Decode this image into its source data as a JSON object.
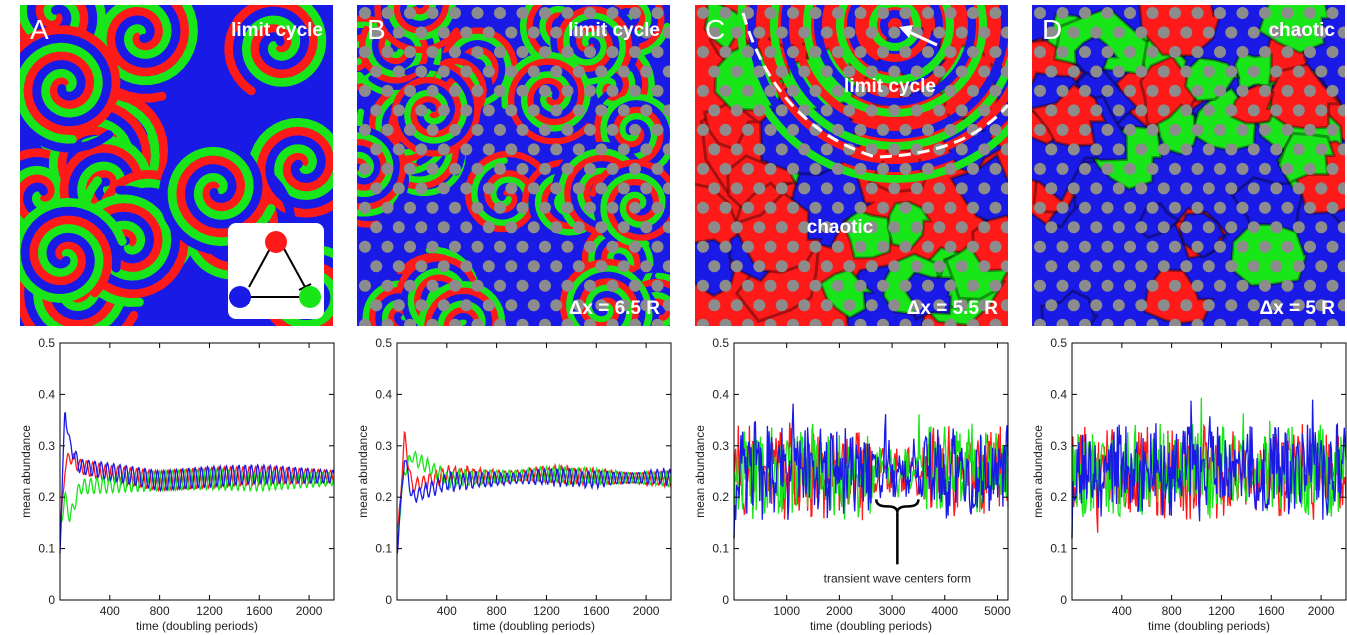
{
  "colors": {
    "red": "#ff1a1a",
    "green": "#19e619",
    "blue": "#1a1ae6",
    "dots": "#8c8c8c",
    "dark": "#111111"
  },
  "panels": [
    {
      "letter": "A",
      "regime_label": "limit cycle",
      "spacing_label": "",
      "show_dots": false,
      "pattern": "spirals",
      "inset": {
        "present": true,
        "nodes": [
          "red",
          "blue",
          "green"
        ]
      },
      "chart_data": {
        "type": "line",
        "xlabel": "time (doubling periods)",
        "ylabel": "mean abundance",
        "xlim": [
          0,
          2200
        ],
        "ylim": [
          0,
          0.5
        ],
        "xticks": [
          400,
          800,
          1200,
          1600,
          2000
        ],
        "yticks": [
          0,
          0.1,
          0.2,
          0.3,
          0.4,
          0.5
        ],
        "ytick_labels": [
          "0",
          "0.1",
          "0.2",
          "0.3",
          "0.4",
          "0.5"
        ],
        "series_style": "damped",
        "series": [
          {
            "color": "red",
            "x": [
              0,
              40,
              80,
              160,
              400,
              800,
              1200,
              1600,
              2200
            ],
            "y": [
              0.12,
              0.26,
              0.28,
              0.26,
              0.245,
              0.232,
              0.238,
              0.242,
              0.24
            ]
          },
          {
            "color": "green",
            "x": [
              0,
              40,
              80,
              160,
              400,
              800,
              1200,
              1600,
              2200
            ],
            "y": [
              0.14,
              0.2,
              0.16,
              0.22,
              0.225,
              0.232,
              0.235,
              0.23,
              0.235
            ]
          },
          {
            "color": "blue",
            "x": [
              0,
              40,
              80,
              160,
              400,
              800,
              1200,
              1600,
              2200
            ],
            "y": [
              0.1,
              0.37,
              0.3,
              0.26,
              0.25,
              0.232,
              0.24,
              0.245,
              0.24
            ]
          }
        ]
      }
    },
    {
      "letter": "B",
      "regime_label": "limit cycle",
      "spacing_label": "Δx = 6.5 R",
      "show_dots": true,
      "pattern": "dense-spirals",
      "inset": {
        "present": false
      },
      "chart_data": {
        "type": "line",
        "xlabel": "time (doubling periods)",
        "ylabel": "mean abundance",
        "xlim": [
          0,
          2200
        ],
        "ylim": [
          0,
          0.5
        ],
        "xticks": [
          400,
          800,
          1200,
          1600,
          2000
        ],
        "yticks": [
          0,
          0.1,
          0.2,
          0.3,
          0.4,
          0.5
        ],
        "ytick_labels": [
          "0",
          "0.1",
          "0.2",
          "0.3",
          "0.4",
          "0.5"
        ],
        "series_style": "damped-wide",
        "series": [
          {
            "color": "red",
            "x": [
              0,
              60,
              120,
              400,
              800,
              1200,
              1600,
              2200
            ],
            "y": [
              0.1,
              0.32,
              0.22,
              0.245,
              0.24,
              0.245,
              0.24,
              0.235
            ]
          },
          {
            "color": "green",
            "x": [
              0,
              60,
              120,
              400,
              800,
              1200,
              1600,
              2200
            ],
            "y": [
              0.12,
              0.25,
              0.28,
              0.235,
              0.24,
              0.245,
              0.24,
              0.235
            ]
          },
          {
            "color": "blue",
            "x": [
              0,
              60,
              120,
              400,
              800,
              1200,
              1600,
              2200
            ],
            "y": [
              0.09,
              0.28,
              0.2,
              0.23,
              0.235,
              0.24,
              0.235,
              0.24
            ]
          }
        ]
      }
    },
    {
      "letter": "C",
      "regime_label": "limit cycle",
      "regime_label_2": "chaotic",
      "spacing_label": "Δx = 5.5 R",
      "show_dots": true,
      "pattern": "mixed",
      "inset": {
        "present": false
      },
      "chart_data": {
        "type": "line",
        "xlabel": "time (doubling periods)",
        "ylabel": "mean abundance",
        "xlim": [
          0,
          5200
        ],
        "ylim": [
          0,
          0.5
        ],
        "xticks": [
          1000,
          2000,
          3000,
          4000,
          5000
        ],
        "yticks": [
          0,
          0.1,
          0.2,
          0.3,
          0.4,
          0.5
        ],
        "ytick_labels": [
          "0",
          "0.1",
          "0.2",
          "0.3",
          "0.4",
          "0.5"
        ],
        "series_style": "noisy-with-calm",
        "calm_range": [
          2600,
          3600
        ],
        "annotation": {
          "text": "transient wave centers form",
          "x": 3100,
          "y": 0.19
        },
        "series": [
          {
            "color": "red",
            "x": [
              0,
              5200
            ],
            "y": [
              0.25,
              0.25
            ]
          },
          {
            "color": "green",
            "x": [
              0,
              5200
            ],
            "y": [
              0.25,
              0.25
            ]
          },
          {
            "color": "blue",
            "x": [
              0,
              5200
            ],
            "y": [
              0.25,
              0.25
            ]
          }
        ]
      }
    },
    {
      "letter": "D",
      "regime_label": "chaotic",
      "spacing_label": "Δx = 5 R",
      "show_dots": true,
      "pattern": "blobs",
      "inset": {
        "present": false
      },
      "chart_data": {
        "type": "line",
        "xlabel": "time (doubling periods)",
        "ylabel": "mean abundance",
        "xlim": [
          0,
          2200
        ],
        "ylim": [
          0,
          0.5
        ],
        "xticks": [
          400,
          800,
          1200,
          1600,
          2000
        ],
        "yticks": [
          0,
          0.1,
          0.2,
          0.3,
          0.4,
          0.5
        ],
        "ytick_labels": [
          "0",
          "0.1",
          "0.2",
          "0.3",
          "0.4",
          "0.5"
        ],
        "series_style": "noisy",
        "series": [
          {
            "color": "red",
            "x": [
              0,
              2200
            ],
            "y": [
              0.25,
              0.25
            ]
          },
          {
            "color": "green",
            "x": [
              0,
              2200
            ],
            "y": [
              0.25,
              0.25
            ]
          },
          {
            "color": "blue",
            "x": [
              0,
              2200
            ],
            "y": [
              0.25,
              0.25
            ]
          }
        ]
      }
    }
  ]
}
